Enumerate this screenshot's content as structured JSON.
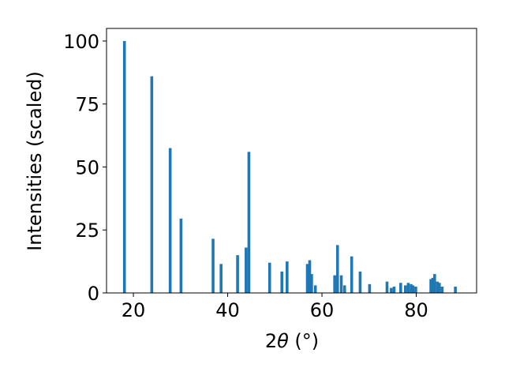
{
  "chart_data": {
    "type": "bar",
    "xlabel_prefix": "2",
    "xlabel_theta": "θ",
    "xlabel_unit": " (°)",
    "ylabel": "Intensities (scaled)",
    "xlim": [
      14.3,
      92.8
    ],
    "ylim": [
      0,
      105
    ],
    "xticks": [
      20,
      40,
      60,
      80
    ],
    "yticks": [
      0,
      25,
      50,
      75,
      100
    ],
    "bar_width_deg": 0.6,
    "bar_color": "#1f77b4",
    "x": [
      18.1,
      23.9,
      27.8,
      30.1,
      36.9,
      38.6,
      42.1,
      43.9,
      44.5,
      48.9,
      51.5,
      52.6,
      56.9,
      57.4,
      57.8,
      58.6,
      62.7,
      63.3,
      64.1,
      64.8,
      66.3,
      68.1,
      70.1,
      73.8,
      74.7,
      75.3,
      76.7,
      77.7,
      78.3,
      78.9,
      79.3,
      79.9,
      83.1,
      83.5,
      83.9,
      84.5,
      84.9,
      85.5,
      88.3
    ],
    "values": [
      100,
      86,
      57.5,
      29.5,
      21.5,
      11.5,
      15,
      18,
      56,
      12,
      8.5,
      12.5,
      11.5,
      13,
      7.5,
      3,
      7,
      19,
      7,
      3,
      14.5,
      8.5,
      3.5,
      4.5,
      2,
      2.5,
      4,
      3,
      4,
      3.5,
      3,
      2.5,
      5.5,
      6,
      7.5,
      4.5,
      4,
      2.5,
      2.5
    ]
  }
}
